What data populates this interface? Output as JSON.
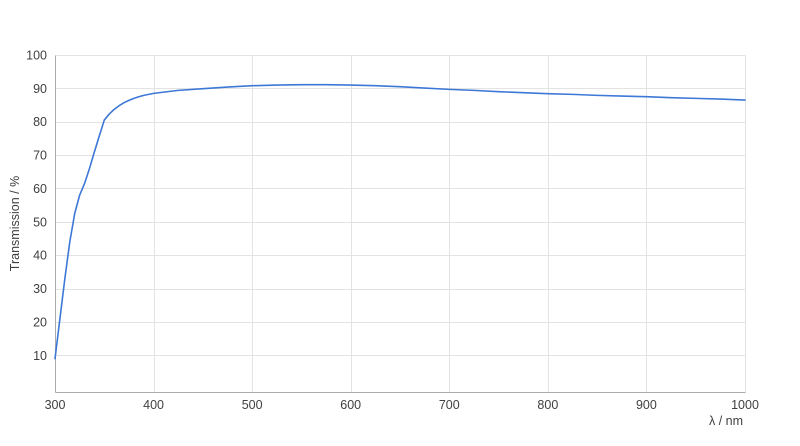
{
  "chart_data": {
    "type": "line",
    "title": "",
    "xlabel": "λ / nm",
    "ylabel": "Transmission / %",
    "xlim": [
      300,
      1000
    ],
    "ylim": [
      -1,
      100
    ],
    "x_ticks": [
      300,
      400,
      500,
      600,
      700,
      800,
      900,
      1000
    ],
    "y_ticks": [
      10,
      20,
      30,
      40,
      50,
      60,
      70,
      80,
      90,
      100
    ],
    "grid": true,
    "legend": false,
    "series": [
      {
        "name": "Transmission",
        "color": "#3e78d6",
        "x": [
          300,
          305,
          310,
          315,
          320,
          325,
          330,
          335,
          340,
          345,
          350,
          355,
          360,
          365,
          370,
          375,
          380,
          385,
          390,
          395,
          400,
          425,
          450,
          475,
          500,
          525,
          550,
          575,
          600,
          625,
          650,
          675,
          700,
          725,
          750,
          775,
          800,
          825,
          850,
          875,
          900,
          925,
          950,
          975,
          1000
        ],
        "y": [
          9,
          21,
          33,
          44,
          52.5,
          58,
          61.5,
          66,
          71,
          75.8,
          80.5,
          82.3,
          83.7,
          84.8,
          85.7,
          86.4,
          87.0,
          87.5,
          87.9,
          88.2,
          88.5,
          89.4,
          89.9,
          90.4,
          90.8,
          91.0,
          91.1,
          91.1,
          91.0,
          90.8,
          90.5,
          90.1,
          89.7,
          89.4,
          89.0,
          88.7,
          88.4,
          88.2,
          87.9,
          87.7,
          87.5,
          87.2,
          87.0,
          86.8,
          86.5
        ]
      }
    ]
  },
  "colors": {
    "background": "#ffffff",
    "grid": "#e3e3e3",
    "axis": "#ababab",
    "text": "#404040",
    "line": "#3e78d6"
  }
}
